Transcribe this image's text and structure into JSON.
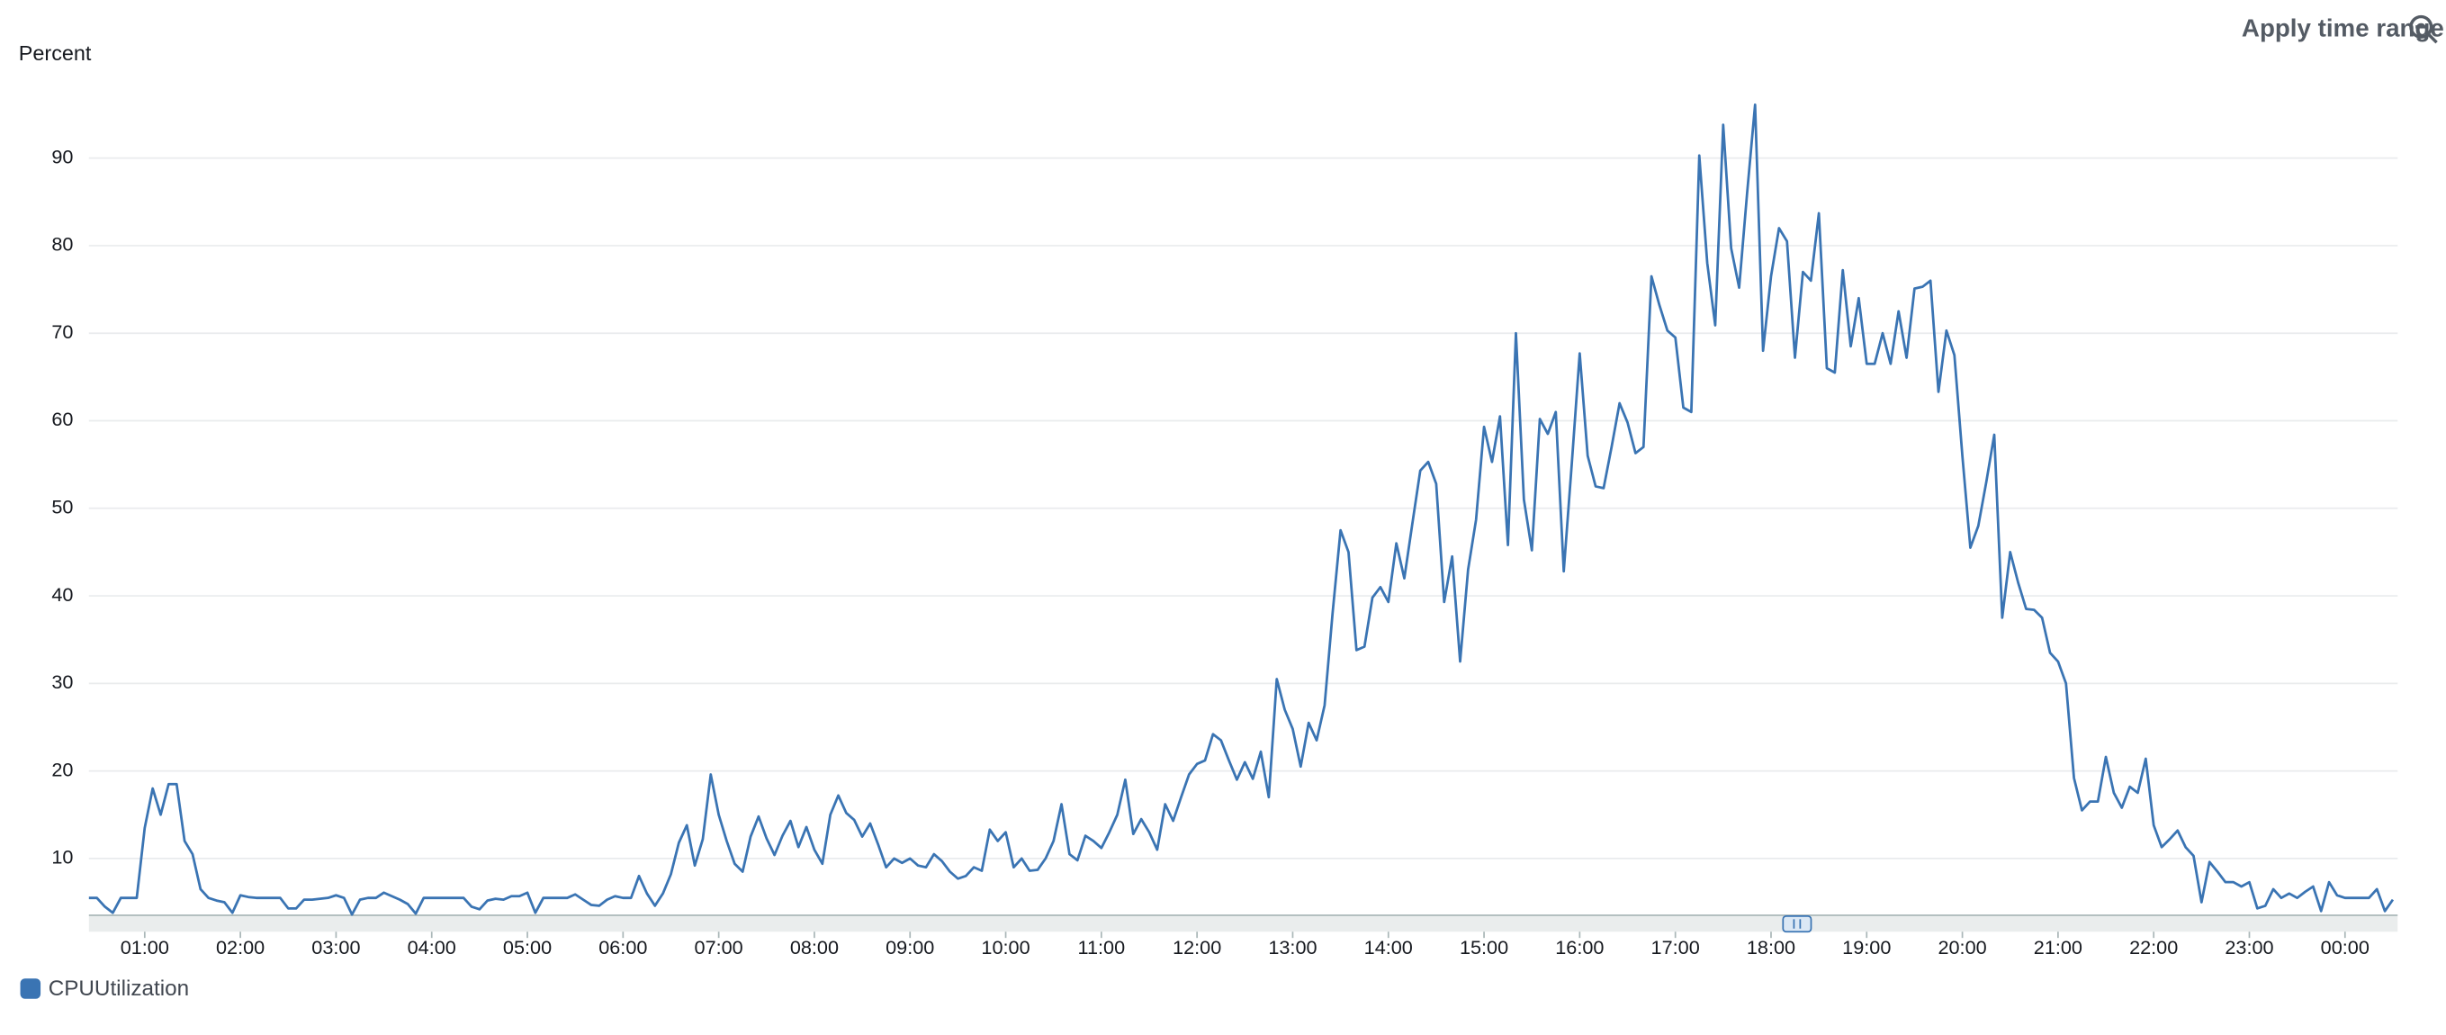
{
  "chart_data": {
    "type": "line",
    "y_label": "Percent",
    "x": [
      25,
      30,
      35,
      40,
      45,
      50,
      55,
      60,
      65,
      70,
      75,
      80,
      85,
      90,
      95,
      100,
      105,
      110,
      115,
      120,
      125,
      130,
      135,
      140,
      145,
      150,
      155,
      160,
      165,
      170,
      175,
      180,
      185,
      190,
      195,
      200,
      205,
      210,
      215,
      220,
      225,
      230,
      235,
      240,
      245,
      250,
      255,
      260,
      265,
      270,
      275,
      280,
      285,
      290,
      295,
      300,
      305,
      310,
      315,
      320,
      325,
      330,
      335,
      340,
      345,
      350,
      355,
      360,
      365,
      370,
      375,
      380,
      385,
      390,
      395,
      400,
      405,
      410,
      415,
      420,
      425,
      430,
      435,
      440,
      445,
      450,
      455,
      460,
      465,
      470,
      475,
      480,
      485,
      490,
      495,
      500,
      505,
      510,
      515,
      520,
      525,
      530,
      535,
      540,
      545,
      550,
      555,
      560,
      565,
      570,
      575,
      580,
      585,
      590,
      595,
      600,
      605,
      610,
      615,
      620,
      625,
      630,
      635,
      640,
      645,
      650,
      655,
      660,
      665,
      670,
      675,
      680,
      685,
      690,
      695,
      700,
      705,
      710,
      715,
      720,
      725,
      730,
      735,
      740,
      745,
      750,
      755,
      760,
      765,
      770,
      775,
      780,
      785,
      790,
      795,
      800,
      805,
      810,
      815,
      820,
      825,
      830,
      835,
      840,
      845,
      850,
      855,
      860,
      865,
      870,
      875,
      880,
      885,
      890,
      895,
      900,
      905,
      910,
      915,
      920,
      925,
      930,
      935,
      940,
      945,
      950,
      955,
      960,
      965,
      970,
      975,
      980,
      985,
      990,
      995,
      1000,
      1005,
      1010,
      1015,
      1020,
      1025,
      1030,
      1035,
      1040,
      1045,
      1050,
      1055,
      1060,
      1065,
      1070,
      1075,
      1080,
      1085,
      1090,
      1095,
      1100,
      1105,
      1110,
      1115,
      1120,
      1125,
      1130,
      1135,
      1140,
      1145,
      1150,
      1155,
      1160,
      1165,
      1170,
      1175,
      1180,
      1185,
      1190,
      1195,
      1200,
      1205,
      1210,
      1215,
      1220,
      1225,
      1230,
      1235,
      1240,
      1245,
      1250,
      1255,
      1260,
      1265,
      1270,
      1275,
      1280,
      1285,
      1290,
      1295,
      1300,
      1305,
      1310,
      1315,
      1320,
      1325,
      1330,
      1335,
      1340,
      1345,
      1350,
      1355,
      1360,
      1365,
      1370,
      1375,
      1380,
      1385,
      1390,
      1395,
      1400,
      1405,
      1410,
      1415,
      1420,
      1425,
      1430,
      1435,
      1440,
      1445,
      1450,
      1455,
      1460,
      1465,
      1470
    ],
    "series": [
      {
        "name": "CPUUtilization",
        "color": "#3a74b3",
        "values": [
          5.5,
          5.5,
          4.5,
          3.8,
          5.5,
          5.5,
          5.5,
          13.5,
          18,
          15,
          18.5,
          18.5,
          12,
          10.5,
          6.5,
          5.5,
          5.2,
          5,
          3.8,
          5.8,
          5.6,
          5.5,
          5.5,
          5.5,
          5.5,
          4.3,
          4.3,
          5.3,
          5.3,
          5.4,
          5.5,
          5.8,
          5.5,
          3.6,
          5.3,
          5.5,
          5.5,
          6.1,
          5.7,
          5.3,
          4.8,
          3.7,
          5.5,
          5.5,
          5.5,
          5.5,
          5.5,
          5.5,
          4.5,
          4.2,
          5.2,
          5.4,
          5.3,
          5.7,
          5.7,
          6.1,
          3.8,
          5.5,
          5.5,
          5.5,
          5.5,
          5.9,
          5.3,
          4.7,
          4.6,
          5.3,
          5.7,
          5.5,
          5.5,
          8,
          6,
          4.6,
          6,
          8.2,
          11.8,
          13.8,
          9.2,
          12.2,
          19.6,
          15,
          12,
          9.4,
          8.5,
          12.5,
          14.8,
          12.3,
          10.4,
          12.6,
          14.3,
          11.3,
          13.6,
          11,
          9.4,
          15,
          17.2,
          15.2,
          14.4,
          12.5,
          14,
          11.6,
          9,
          10,
          9.5,
          10,
          9.2,
          9,
          10.5,
          9.7,
          8.5,
          7.7,
          8,
          9,
          8.6,
          13.3,
          12,
          13,
          9,
          10,
          8.6,
          8.7,
          10,
          12,
          16.2,
          10.5,
          9.8,
          12.6,
          12,
          11.2,
          13,
          15,
          19,
          12.8,
          14.5,
          13,
          11,
          16.2,
          14.3,
          17,
          19.6,
          20.8,
          21.2,
          24.2,
          23.5,
          21.2,
          19,
          21,
          19.1,
          22.2,
          17,
          30.5,
          27,
          24.8,
          20.5,
          25.5,
          23.5,
          27.5,
          38,
          47.5,
          45,
          33.8,
          34.2,
          39.8,
          41,
          39.3,
          46,
          42,
          48.2,
          54.3,
          55.3,
          52.8,
          39.3,
          44.5,
          32.5,
          43,
          48.7,
          59.3,
          55.3,
          60.5,
          45.8,
          70,
          51,
          45.2,
          60.2,
          58.5,
          61,
          42.8,
          55,
          67.7,
          56,
          52.5,
          52.3,
          57,
          62,
          59.8,
          56.3,
          57,
          76.5,
          73.2,
          70.3,
          69.5,
          61.5,
          61,
          90.3,
          78,
          70.9,
          93.8,
          79.7,
          75.2,
          86,
          96.1,
          68,
          76.5,
          82,
          80.5,
          67.2,
          77,
          76,
          83.7,
          66,
          65.5,
          77.2,
          68.5,
          74,
          66.5,
          66.5,
          70,
          66.5,
          72.5,
          67.2,
          75.1,
          75.3,
          76,
          63.3,
          70.3,
          67.5,
          56,
          45.5,
          48,
          53,
          58.4,
          37.5,
          45,
          41.5,
          38.5,
          38.4,
          37.5,
          33.5,
          32.5,
          30,
          19.2,
          15.5,
          16.5,
          16.5,
          21.6,
          17.5,
          15.8,
          18.2,
          17.5,
          21.4,
          13.8,
          11.3,
          12.2,
          13.2,
          11.3,
          10.3,
          5,
          9.6,
          8.5,
          7.3,
          7.3,
          6.8,
          7.3,
          4.3,
          4.6,
          6.5,
          5.5,
          6,
          5.5,
          6.2,
          6.8,
          4,
          7.3,
          5.8,
          5.5,
          5.5,
          5.5,
          5.5,
          6.5,
          4,
          5.3
        ]
      }
    ],
    "xlim": [
      25,
      1473
    ],
    "ylim": [
      3.6,
      100
    ],
    "xticks": [
      {
        "value": 60,
        "label": "01:00"
      },
      {
        "value": 120,
        "label": "02:00"
      },
      {
        "value": 180,
        "label": "03:00"
      },
      {
        "value": 240,
        "label": "04:00"
      },
      {
        "value": 300,
        "label": "05:00"
      },
      {
        "value": 360,
        "label": "06:00"
      },
      {
        "value": 420,
        "label": "07:00"
      },
      {
        "value": 480,
        "label": "08:00"
      },
      {
        "value": 540,
        "label": "09:00"
      },
      {
        "value": 600,
        "label": "10:00"
      },
      {
        "value": 660,
        "label": "11:00"
      },
      {
        "value": 720,
        "label": "12:00"
      },
      {
        "value": 780,
        "label": "13:00"
      },
      {
        "value": 840,
        "label": "14:00"
      },
      {
        "value": 900,
        "label": "15:00"
      },
      {
        "value": 960,
        "label": "16:00"
      },
      {
        "value": 1020,
        "label": "17:00"
      },
      {
        "value": 1080,
        "label": "18:00"
      },
      {
        "value": 1140,
        "label": "19:00"
      },
      {
        "value": 1200,
        "label": "20:00"
      },
      {
        "value": 1260,
        "label": "21:00"
      },
      {
        "value": 1320,
        "label": "22:00"
      },
      {
        "value": 1380,
        "label": "23:00"
      },
      {
        "value": 1440,
        "label": "00:00"
      }
    ],
    "yticks": [
      10,
      20,
      30,
      40,
      50,
      60,
      70,
      80,
      90
    ],
    "grid": true,
    "legend": "bottom-left"
  },
  "toolbar": {
    "button": "Apply time range"
  }
}
